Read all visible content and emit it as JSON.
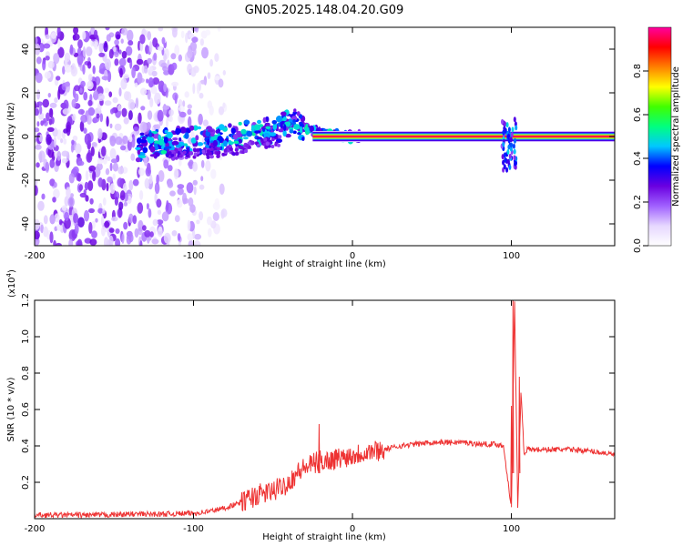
{
  "chart_data": [
    {
      "type": "heatmap",
      "title": "GN05.2025.148.04.20.G09",
      "xlabel": "Height of straight line (km)",
      "ylabel": "Frequency (Hz)",
      "xlim": [
        -200,
        165
      ],
      "ylim": [
        -50,
        50
      ],
      "x_ticks": [
        -200,
        -100,
        0,
        100
      ],
      "y_ticks": [
        -40,
        -20,
        0,
        20,
        40
      ],
      "colorbar": {
        "label": "Normalized spectral amplitude",
        "range": [
          0,
          1
        ],
        "ticks": [
          0.0,
          0.2,
          0.4,
          0.6,
          0.8
        ],
        "colormap": [
          "#ffffff",
          "#e6d7ff",
          "#a060ff",
          "#6a00e0",
          "#0000ff",
          "#00c8ff",
          "#00ff80",
          "#40ff00",
          "#ffff00",
          "#ff8000",
          "#ff0000",
          "#ff00a0"
        ]
      },
      "features": [
        {
          "name": "noise",
          "x_range": [
            -200,
            -80
          ],
          "freq_range": [
            -50,
            50
          ],
          "amplitude": 0.15
        },
        {
          "name": "track",
          "points": [
            [
              -135,
              -5
            ],
            [
              -120,
              -3
            ],
            [
              -100,
              -2
            ],
            [
              -80,
              -1
            ],
            [
              -60,
              2
            ],
            [
              -45,
              4
            ],
            [
              -35,
              7
            ],
            [
              -28,
              3
            ],
            [
              -15,
              1
            ],
            [
              -5,
              0
            ],
            [
              5,
              0
            ]
          ],
          "amplitude": 0.35
        },
        {
          "name": "carrier",
          "x_range": [
            -25,
            165
          ],
          "freq": 0,
          "amplitude": 0.95
        },
        {
          "name": "spike",
          "x_range": [
            94,
            103
          ],
          "freq_range": [
            -16,
            8
          ],
          "amplitude": 0.3
        }
      ]
    },
    {
      "type": "line",
      "xlabel": "Height of straight line (km)",
      "ylabel": "SNR (10 * v/v)",
      "y_multiplier": "(x10",
      "y_multiplier_exp": "4",
      "y_multiplier_close": ")",
      "xlim": [
        -200,
        165
      ],
      "ylim": [
        0,
        1.2
      ],
      "x_ticks": [
        -200,
        -100,
        0,
        100
      ],
      "y_ticks": [
        0.2,
        0.4,
        0.6,
        0.8,
        1.0,
        1.2
      ],
      "line_color": "#ee3333",
      "series": [
        {
          "x": [
            -200,
            -180,
            -160,
            -140,
            -120,
            -100,
            -90,
            -80,
            -70,
            -60,
            -50,
            -40,
            -35,
            -30,
            -25,
            -20,
            -15,
            -10,
            -5,
            0,
            10,
            20,
            30,
            40,
            50,
            60,
            70,
            80,
            90,
            95,
            98,
            100,
            102,
            104,
            106,
            108,
            110,
            120,
            130,
            140,
            150,
            160,
            165
          ],
          "y": [
            0.02,
            0.02,
            0.02,
            0.025,
            0.025,
            0.03,
            0.04,
            0.06,
            0.09,
            0.13,
            0.15,
            0.2,
            0.25,
            0.28,
            0.3,
            0.32,
            0.32,
            0.33,
            0.34,
            0.35,
            0.37,
            0.38,
            0.4,
            0.41,
            0.42,
            0.42,
            0.42,
            0.41,
            0.41,
            0.4,
            0.2,
            0.05,
            1.2,
            0.05,
            0.7,
            0.36,
            0.38,
            0.38,
            0.38,
            0.38,
            0.37,
            0.36,
            0.35
          ]
        }
      ],
      "spikes": [
        {
          "x": -21,
          "y": 0.52
        },
        {
          "x": 100,
          "y": 0.62
        },
        {
          "x": 101,
          "y": 1.2
        },
        {
          "x": 105,
          "y": 0.78
        }
      ]
    }
  ]
}
